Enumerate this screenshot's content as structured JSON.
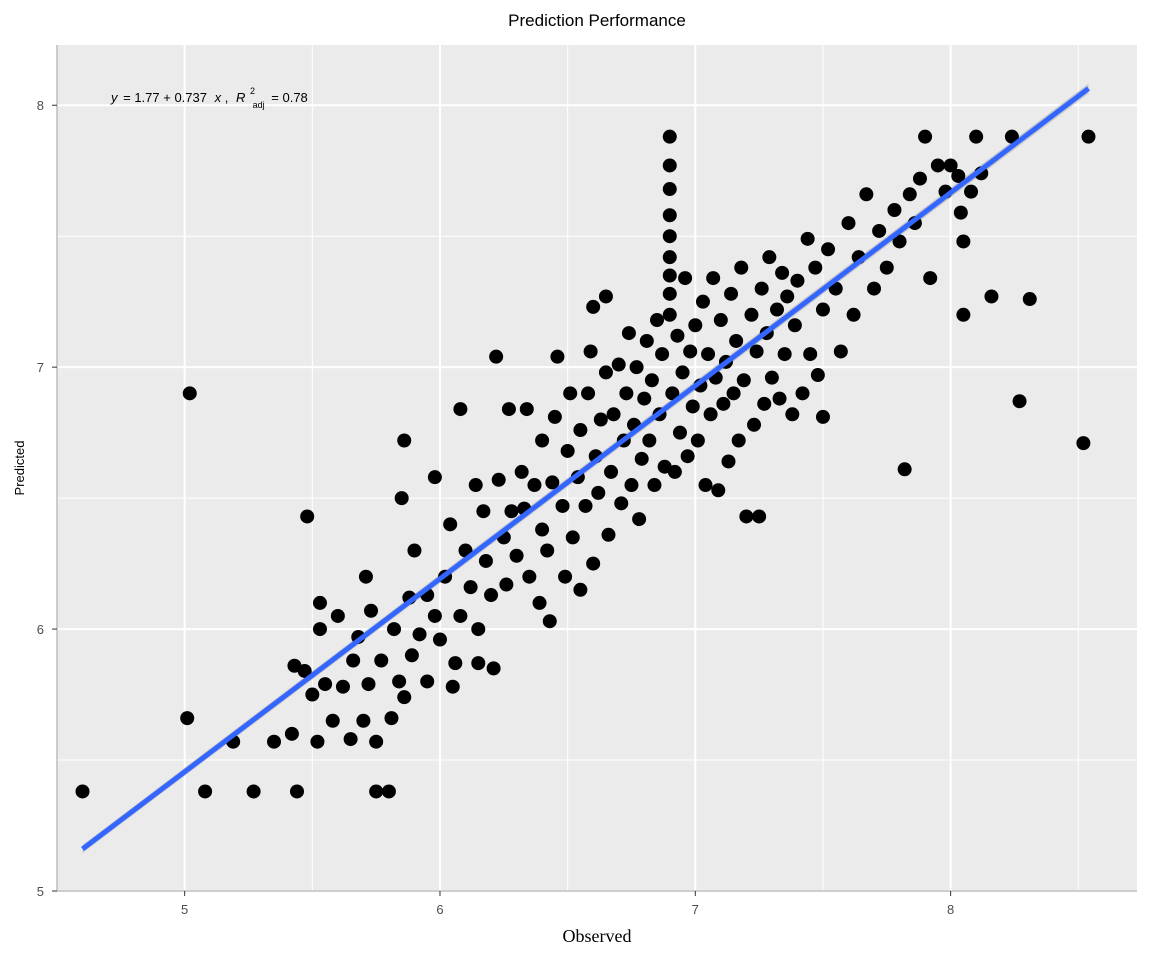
{
  "chart_data": {
    "type": "scatter",
    "title": "Prediction Performance",
    "xlabel": "Observed",
    "ylabel": "Predicted",
    "xlim": [
      4.5,
      8.73
    ],
    "ylim": [
      5.0,
      8.23
    ],
    "x_ticks": [
      5,
      6,
      7,
      8
    ],
    "y_ticks": [
      5,
      6,
      7,
      8
    ],
    "grid": true,
    "background": "#ebebeb",
    "point_color": "#000000",
    "fit": {
      "intercept": 1.77,
      "slope": 0.737,
      "adj_r2": 0.78,
      "x_range": [
        4.6,
        8.54
      ],
      "color": "#3366ff",
      "ci_color": "#bfbfbf",
      "annotation": {
        "y": "y",
        "eq": "= 1.77 + 0.737",
        "x": "x",
        "comma": ",",
        "R": "R",
        "sup": "2",
        "sub": "adj",
        "val": "= 0.78"
      }
    },
    "points": [
      [
        4.6,
        5.38
      ],
      [
        5.01,
        5.66
      ],
      [
        5.02,
        6.9
      ],
      [
        5.08,
        5.38
      ],
      [
        5.19,
        5.57
      ],
      [
        5.27,
        5.38
      ],
      [
        5.35,
        5.57
      ],
      [
        5.42,
        5.6
      ],
      [
        5.43,
        5.86
      ],
      [
        5.44,
        5.38
      ],
      [
        5.47,
        5.84
      ],
      [
        5.48,
        6.43
      ],
      [
        5.5,
        5.75
      ],
      [
        5.52,
        5.57
      ],
      [
        5.53,
        6.0
      ],
      [
        5.53,
        6.1
      ],
      [
        5.55,
        5.79
      ],
      [
        5.58,
        5.65
      ],
      [
        5.6,
        6.05
      ],
      [
        5.62,
        5.78
      ],
      [
        5.65,
        5.58
      ],
      [
        5.66,
        5.88
      ],
      [
        5.68,
        5.97
      ],
      [
        5.7,
        5.65
      ],
      [
        5.71,
        6.2
      ],
      [
        5.72,
        5.79
      ],
      [
        5.73,
        6.07
      ],
      [
        5.75,
        5.57
      ],
      [
        5.75,
        5.38
      ],
      [
        5.77,
        5.88
      ],
      [
        5.8,
        5.38
      ],
      [
        5.81,
        5.66
      ],
      [
        5.82,
        6.0
      ],
      [
        5.84,
        5.8
      ],
      [
        5.85,
        6.5
      ],
      [
        5.86,
        5.74
      ],
      [
        5.86,
        6.72
      ],
      [
        5.88,
        6.12
      ],
      [
        5.89,
        5.9
      ],
      [
        5.9,
        6.3
      ],
      [
        5.92,
        5.98
      ],
      [
        5.95,
        6.13
      ],
      [
        5.95,
        5.8
      ],
      [
        5.98,
        6.05
      ],
      [
        5.98,
        6.58
      ],
      [
        6.0,
        5.96
      ],
      [
        6.02,
        6.2
      ],
      [
        6.04,
        6.4
      ],
      [
        6.05,
        5.78
      ],
      [
        6.06,
        5.87
      ],
      [
        6.08,
        6.05
      ],
      [
        6.08,
        6.84
      ],
      [
        6.1,
        6.3
      ],
      [
        6.12,
        6.16
      ],
      [
        6.14,
        6.55
      ],
      [
        6.15,
        5.87
      ],
      [
        6.15,
        6.0
      ],
      [
        6.17,
        6.45
      ],
      [
        6.18,
        6.26
      ],
      [
        6.2,
        6.13
      ],
      [
        6.21,
        5.85
      ],
      [
        6.22,
        7.04
      ],
      [
        6.23,
        6.57
      ],
      [
        6.25,
        6.35
      ],
      [
        6.26,
        6.17
      ],
      [
        6.28,
        6.45
      ],
      [
        6.27,
        6.84
      ],
      [
        6.3,
        6.28
      ],
      [
        6.32,
        6.6
      ],
      [
        6.33,
        6.46
      ],
      [
        6.34,
        6.84
      ],
      [
        6.35,
        6.2
      ],
      [
        6.37,
        6.55
      ],
      [
        6.39,
        6.1
      ],
      [
        6.4,
        6.38
      ],
      [
        6.4,
        6.72
      ],
      [
        6.42,
        6.3
      ],
      [
        6.43,
        6.03
      ],
      [
        6.44,
        6.56
      ],
      [
        6.45,
        6.81
      ],
      [
        6.46,
        7.04
      ],
      [
        6.48,
        6.47
      ],
      [
        6.49,
        6.2
      ],
      [
        6.5,
        6.68
      ],
      [
        6.51,
        6.9
      ],
      [
        6.52,
        6.35
      ],
      [
        6.54,
        6.58
      ],
      [
        6.55,
        6.76
      ],
      [
        6.55,
        6.15
      ],
      [
        6.57,
        6.47
      ],
      [
        6.58,
        6.9
      ],
      [
        6.59,
        7.06
      ],
      [
        6.6,
        6.25
      ],
      [
        6.6,
        7.23
      ],
      [
        6.61,
        6.66
      ],
      [
        6.62,
        6.52
      ],
      [
        6.63,
        6.8
      ],
      [
        6.65,
        6.98
      ],
      [
        6.65,
        7.27
      ],
      [
        6.66,
        6.36
      ],
      [
        6.67,
        6.6
      ],
      [
        6.68,
        6.82
      ],
      [
        6.7,
        7.01
      ],
      [
        6.71,
        6.48
      ],
      [
        6.72,
        6.72
      ],
      [
        6.73,
        6.9
      ],
      [
        6.74,
        7.13
      ],
      [
        6.75,
        6.55
      ],
      [
        6.76,
        6.78
      ],
      [
        6.77,
        7.0
      ],
      [
        6.78,
        6.42
      ],
      [
        6.79,
        6.65
      ],
      [
        6.8,
        6.88
      ],
      [
        6.81,
        7.1
      ],
      [
        6.82,
        6.72
      ],
      [
        6.83,
        6.95
      ],
      [
        6.84,
        6.55
      ],
      [
        6.85,
        7.18
      ],
      [
        6.86,
        6.82
      ],
      [
        6.87,
        7.05
      ],
      [
        6.88,
        6.62
      ],
      [
        6.9,
        7.88
      ],
      [
        6.9,
        7.77
      ],
      [
        6.9,
        7.68
      ],
      [
        6.9,
        7.58
      ],
      [
        6.9,
        7.5
      ],
      [
        6.9,
        7.42
      ],
      [
        6.9,
        7.35
      ],
      [
        6.9,
        7.28
      ],
      [
        6.9,
        7.2
      ],
      [
        6.91,
        6.9
      ],
      [
        6.92,
        6.6
      ],
      [
        6.93,
        7.12
      ],
      [
        6.94,
        6.75
      ],
      [
        6.95,
        6.98
      ],
      [
        6.96,
        7.34
      ],
      [
        6.97,
        6.66
      ],
      [
        6.98,
        7.06
      ],
      [
        6.99,
        6.85
      ],
      [
        7.0,
        7.16
      ],
      [
        7.01,
        6.72
      ],
      [
        7.02,
        6.93
      ],
      [
        7.03,
        7.25
      ],
      [
        7.04,
        6.55
      ],
      [
        7.05,
        7.05
      ],
      [
        7.06,
        6.82
      ],
      [
        7.07,
        7.34
      ],
      [
        7.08,
        6.96
      ],
      [
        7.09,
        6.53
      ],
      [
        7.1,
        7.18
      ],
      [
        7.11,
        6.86
      ],
      [
        7.12,
        7.02
      ],
      [
        7.13,
        6.64
      ],
      [
        7.14,
        7.28
      ],
      [
        7.15,
        6.9
      ],
      [
        7.16,
        7.1
      ],
      [
        7.17,
        6.72
      ],
      [
        7.18,
        7.38
      ],
      [
        7.19,
        6.95
      ],
      [
        7.2,
        6.43
      ],
      [
        7.22,
        7.2
      ],
      [
        7.23,
        6.78
      ],
      [
        7.24,
        7.06
      ],
      [
        7.25,
        6.43
      ],
      [
        7.26,
        7.3
      ],
      [
        7.27,
        6.86
      ],
      [
        7.28,
        7.13
      ],
      [
        7.29,
        7.42
      ],
      [
        7.3,
        6.96
      ],
      [
        7.32,
        7.22
      ],
      [
        7.33,
        6.88
      ],
      [
        7.34,
        7.36
      ],
      [
        7.35,
        7.05
      ],
      [
        7.36,
        7.27
      ],
      [
        7.38,
        6.82
      ],
      [
        7.39,
        7.16
      ],
      [
        7.4,
        7.33
      ],
      [
        7.42,
        6.9
      ],
      [
        7.44,
        7.49
      ],
      [
        7.45,
        7.05
      ],
      [
        7.47,
        7.38
      ],
      [
        7.48,
        6.97
      ],
      [
        7.5,
        7.22
      ],
      [
        7.5,
        6.81
      ],
      [
        7.52,
        7.45
      ],
      [
        7.55,
        7.3
      ],
      [
        7.57,
        7.06
      ],
      [
        7.6,
        7.55
      ],
      [
        7.62,
        7.2
      ],
      [
        7.64,
        7.42
      ],
      [
        7.67,
        7.66
      ],
      [
        7.7,
        7.3
      ],
      [
        7.72,
        7.52
      ],
      [
        7.75,
        7.38
      ],
      [
        7.78,
        7.6
      ],
      [
        7.8,
        7.48
      ],
      [
        7.82,
        6.61
      ],
      [
        7.84,
        7.66
      ],
      [
        7.86,
        7.55
      ],
      [
        7.88,
        7.72
      ],
      [
        7.9,
        7.88
      ],
      [
        7.92,
        7.34
      ],
      [
        7.95,
        7.77
      ],
      [
        7.98,
        7.67
      ],
      [
        8.0,
        7.77
      ],
      [
        8.03,
        7.73
      ],
      [
        8.04,
        7.59
      ],
      [
        8.05,
        7.2
      ],
      [
        8.05,
        7.48
      ],
      [
        8.08,
        7.67
      ],
      [
        8.1,
        7.88
      ],
      [
        8.12,
        7.74
      ],
      [
        8.16,
        7.27
      ],
      [
        8.24,
        7.88
      ],
      [
        8.27,
        6.87
      ],
      [
        8.31,
        7.26
      ],
      [
        8.52,
        6.71
      ],
      [
        8.54,
        7.88
      ]
    ]
  }
}
